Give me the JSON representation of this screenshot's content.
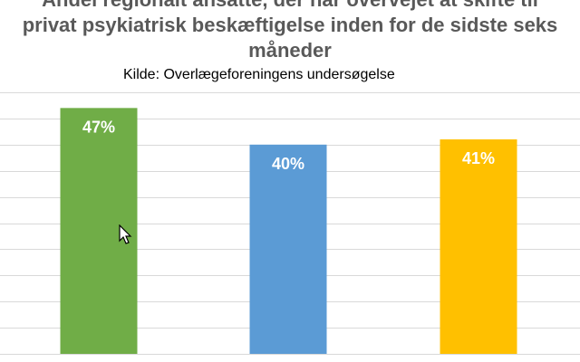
{
  "chart_data": {
    "type": "bar",
    "title_lines": [
      "Andel regionalt ansatte, der har overvejet at skifte til",
      "privat psykiatrisk beskæftigelse inden for de sidste seks",
      "måneder"
    ],
    "subtitle": "Kilde: Overlægeforeningens undersøgelse",
    "categories": [
      "",
      "",
      ""
    ],
    "values": [
      47,
      40,
      41
    ],
    "value_labels": [
      "47%",
      "40%",
      "41%"
    ],
    "colors": [
      "#70ad47",
      "#5b9bd5",
      "#ffc000"
    ],
    "ylim": [
      0,
      50
    ],
    "grid": true,
    "legend": "none"
  }
}
